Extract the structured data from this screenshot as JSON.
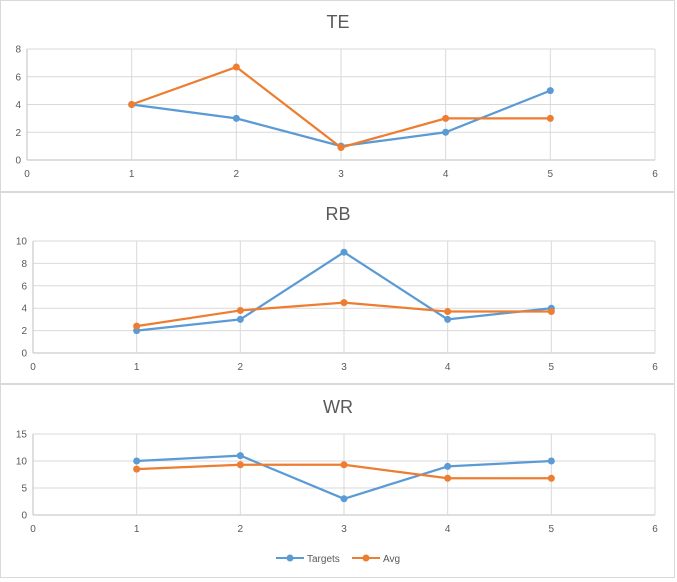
{
  "chart_data": [
    {
      "type": "scatter",
      "title": "TE",
      "xlim": [
        0,
        6
      ],
      "ylim": [
        0,
        8
      ],
      "x_ticks": [
        0,
        1,
        2,
        3,
        4,
        5,
        6
      ],
      "y_ticks": [
        0,
        2,
        4,
        6,
        8
      ],
      "grid": true,
      "x": [
        1,
        2,
        3,
        4,
        5
      ],
      "series": [
        {
          "name": "Targets",
          "color": "#5b9bd5",
          "values": [
            4,
            3,
            1,
            2,
            5
          ]
        },
        {
          "name": "Avg",
          "color": "#ed7d31",
          "values": [
            4,
            6.7,
            0.9,
            3,
            3
          ]
        }
      ]
    },
    {
      "type": "scatter",
      "title": "RB",
      "xlim": [
        0,
        6
      ],
      "ylim": [
        0,
        10
      ],
      "x_ticks": [
        0,
        1,
        2,
        3,
        4,
        5,
        6
      ],
      "y_ticks": [
        0,
        2,
        4,
        6,
        8,
        10
      ],
      "grid": true,
      "x": [
        1,
        2,
        3,
        4,
        5
      ],
      "series": [
        {
          "name": "Targets",
          "color": "#5b9bd5",
          "values": [
            2,
            3,
            9,
            3,
            4
          ]
        },
        {
          "name": "Avg",
          "color": "#ed7d31",
          "values": [
            2.4,
            3.8,
            4.5,
            3.7,
            3.7
          ]
        }
      ]
    },
    {
      "type": "scatter",
      "title": "WR",
      "xlim": [
        0,
        6
      ],
      "ylim": [
        0,
        15
      ],
      "x_ticks": [
        0,
        1,
        2,
        3,
        4,
        5,
        6
      ],
      "y_ticks": [
        0,
        5,
        10,
        15
      ],
      "grid": true,
      "x": [
        1,
        2,
        3,
        4,
        5
      ],
      "series": [
        {
          "name": "Targets",
          "color": "#5b9bd5",
          "values": [
            10,
            11,
            3,
            9,
            10
          ]
        },
        {
          "name": "Avg",
          "color": "#ed7d31",
          "values": [
            8.5,
            9.3,
            9.3,
            6.8,
            6.8
          ]
        }
      ]
    }
  ],
  "legend": {
    "placement": "bottom",
    "items": [
      {
        "label": "Targets",
        "color": "#5b9bd5"
      },
      {
        "label": "Avg",
        "color": "#ed7d31"
      }
    ]
  }
}
